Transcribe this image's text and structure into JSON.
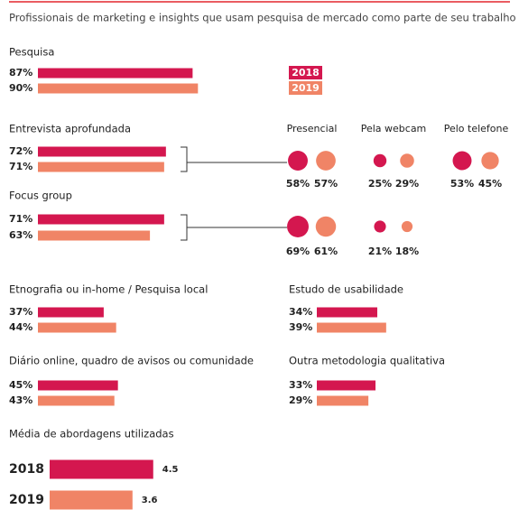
{
  "title": "Profissionais de marketing e insights que usam pesquisa de mercado como parte de seu trabalho",
  "chart_data": [
    {
      "type": "hbar",
      "title": "Pesquisa",
      "xlim": [
        0,
        100
      ],
      "legend": "right",
      "series": [
        {
          "name": "2018",
          "color": "#d4174f",
          "values": [
            87
          ],
          "value_labels": [
            "87%"
          ]
        },
        {
          "name": "2019",
          "color": "#f08466",
          "values": [
            90
          ],
          "value_labels": [
            "90%"
          ]
        }
      ]
    },
    {
      "type": "hbar",
      "title": "Entrevista aprofundada",
      "xlim": [
        0,
        100
      ],
      "series": [
        {
          "color": "#d4174f",
          "values": [
            72
          ],
          "value_labels": [
            "72%"
          ]
        },
        {
          "color": "#f08466",
          "values": [
            71
          ],
          "value_labels": [
            "71%"
          ]
        }
      ]
    },
    {
      "type": "bubble",
      "categories": [
        "Presencial",
        "Pela webcam",
        "Pelo telefone"
      ],
      "series": [
        {
          "color": "#d4174f",
          "values": [
            58,
            25,
            53
          ],
          "value_labels": [
            "58%",
            "25%",
            "53%"
          ]
        },
        {
          "color": "#f08466",
          "values": [
            57,
            29,
            45
          ],
          "value_labels": [
            "57%",
            "29%",
            "45%"
          ]
        },
        {
          "color": "#d4174f",
          "values": [
            69,
            21,
            null
          ],
          "value_labels": [
            "69%",
            "21%",
            null
          ]
        },
        {
          "color": "#f08466",
          "values": [
            61,
            18,
            null
          ],
          "value_labels": [
            "61%",
            "18%",
            null
          ]
        }
      ]
    },
    {
      "type": "hbar",
      "title": "Focus group",
      "xlim": [
        0,
        100
      ],
      "series": [
        {
          "color": "#d4174f",
          "values": [
            71
          ],
          "value_labels": [
            "71%"
          ]
        },
        {
          "color": "#f08466",
          "values": [
            63
          ],
          "value_labels": [
            "63%"
          ]
        }
      ]
    },
    {
      "type": "hbar",
      "title": "Etnografia ou in-home / Pesquisa local",
      "xlim": [
        0,
        100
      ],
      "series": [
        {
          "color": "#d4174f",
          "values": [
            37
          ],
          "value_labels": [
            "37%"
          ]
        },
        {
          "color": "#f08466",
          "values": [
            44
          ],
          "value_labels": [
            "44%"
          ]
        }
      ]
    },
    {
      "type": "hbar",
      "title": "Estudo de usabilidade",
      "xlim": [
        0,
        100
      ],
      "series": [
        {
          "color": "#d4174f",
          "values": [
            34
          ],
          "value_labels": [
            "34%"
          ]
        },
        {
          "color": "#f08466",
          "values": [
            39
          ],
          "value_labels": [
            "39%"
          ]
        }
      ]
    },
    {
      "type": "hbar",
      "title": "Diário online, quadro de avisos ou comunidade",
      "xlim": [
        0,
        100
      ],
      "series": [
        {
          "color": "#d4174f",
          "values": [
            45
          ],
          "value_labels": [
            "45%"
          ]
        },
        {
          "color": "#f08466",
          "values": [
            43
          ],
          "value_labels": [
            "43%"
          ]
        }
      ]
    },
    {
      "type": "hbar",
      "title": "Outra metodologia qualitativa",
      "xlim": [
        0,
        100
      ],
      "series": [
        {
          "color": "#d4174f",
          "values": [
            33
          ],
          "value_labels": [
            "33%"
          ]
        },
        {
          "color": "#f08466",
          "values": [
            29
          ],
          "value_labels": [
            "29%"
          ]
        }
      ]
    },
    {
      "type": "catbar",
      "title": "Média de abordagens utilizadas",
      "xlim": [
        0,
        8
      ],
      "categories": [
        "2018",
        "2019"
      ],
      "values": [
        4.5,
        3.6
      ],
      "colors": [
        "#d4174f",
        "#f08466"
      ]
    }
  ]
}
